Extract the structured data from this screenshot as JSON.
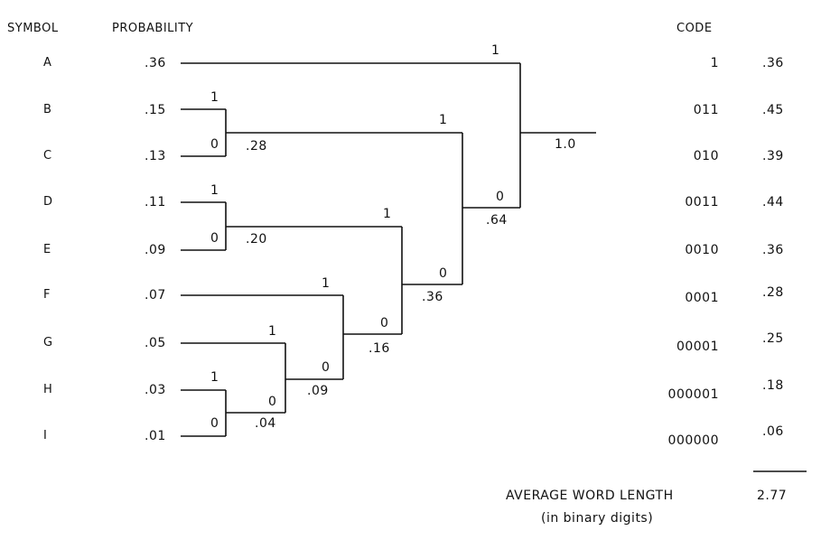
{
  "headers": {
    "symbol": "SYMBOL",
    "probability": "PROBABILITY",
    "code": "CODE"
  },
  "rows": [
    {
      "symbol": "A",
      "prob": ".36",
      "code": "1",
      "contrib": ".36"
    },
    {
      "symbol": "B",
      "prob": ".15",
      "code": "011",
      "contrib": ".45"
    },
    {
      "symbol": "C",
      "prob": ".13",
      "code": "010",
      "contrib": ".39"
    },
    {
      "symbol": "D",
      "prob": ".11",
      "code": "0011",
      "contrib": ".44"
    },
    {
      "symbol": "E",
      "prob": ".09",
      "code": "0010",
      "contrib": ".36"
    },
    {
      "symbol": "F",
      "prob": ".07",
      "code": "0001",
      "contrib": ".28"
    },
    {
      "symbol": "G",
      "prob": ".05",
      "code": "00001",
      "contrib": ".25"
    },
    {
      "symbol": "H",
      "prob": ".03",
      "code": "000001",
      "contrib": ".18"
    },
    {
      "symbol": "I",
      "prob": ".01",
      "code": "000000",
      "contrib": ".06"
    }
  ],
  "tree": {
    "merged_sums": {
      "bc": ".28",
      "de": ".20",
      "hi": ".04",
      "ghi": ".09",
      "fghi": ".16",
      "defghi": ".36",
      "bcdefghi": ".64",
      "root": "1.0"
    },
    "bit_one": "1",
    "bit_zero": "0"
  },
  "footer": {
    "label": "AVERAGE WORD LENGTH",
    "value": "2.77",
    "sublabel": "(in binary digits)"
  }
}
